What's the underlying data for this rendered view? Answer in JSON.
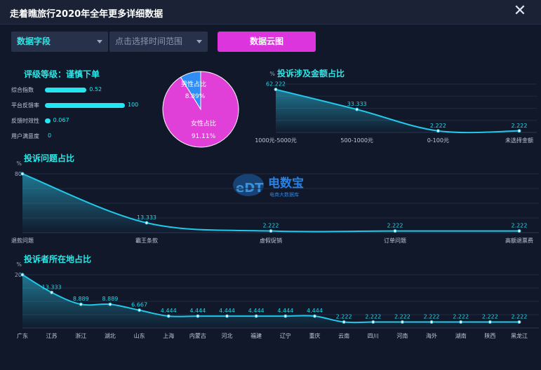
{
  "window": {
    "title": "走着瞧旅行2020年全年更多详细数据"
  },
  "filters": {
    "field_select": "数据字段",
    "time_placeholder": "点击选择时间范围",
    "cloud_button": "数据云图"
  },
  "rating": {
    "title": "评级等级：谨慎下单",
    "items": [
      {
        "label": "综合指数",
        "value": "0.52",
        "fraction": 0.52
      },
      {
        "label": "平台反馈率",
        "value": "100",
        "fraction": 1.0
      },
      {
        "label": "反馈时效性",
        "value": "0.067",
        "fraction": 0.067
      },
      {
        "label": "用户满意度",
        "value": "0",
        "fraction": 0
      }
    ]
  },
  "colors": {
    "accent": "#2ee6e6",
    "pink": "#e040d8",
    "blue": "#2f8df5",
    "button": "#dd35de"
  },
  "chart_data": [
    {
      "type": "pie",
      "labels": [
        "男性占比",
        "女性占比"
      ],
      "values": [
        8.89,
        91.11
      ],
      "value_labels": [
        "8.89%",
        "91.11%"
      ],
      "colors": [
        "#2f8df5",
        "#e040d8"
      ]
    },
    {
      "type": "area",
      "title": "投诉涉及金额占比",
      "ylabel": "%",
      "categories": [
        "1000元-5000元",
        "500-1000元",
        "0-100元",
        "未选择金额"
      ],
      "values": [
        62.222,
        33.333,
        2.222,
        2.222
      ],
      "labels": [
        "62.222",
        "33.333",
        "2.222",
        "2.222"
      ],
      "ylim": [
        0,
        70
      ]
    },
    {
      "type": "area",
      "title": "投诉问题占比",
      "ylabel": "%",
      "yticks": [
        "80"
      ],
      "categories": [
        "退款问题",
        "霸王条款",
        "虚假促销",
        "订单问题",
        "高额退票费"
      ],
      "values": [
        80,
        13.333,
        2.222,
        2.222,
        2.222
      ],
      "labels": [
        "",
        "13.333",
        "2.222",
        "2.222",
        "2.222"
      ],
      "ylim": [
        0,
        80
      ]
    },
    {
      "type": "area",
      "title": "投诉者所在地占比",
      "ylabel": "%",
      "yticks": [
        "20"
      ],
      "categories": [
        "广东",
        "江苏",
        "浙江",
        "湖北",
        "山东",
        "上海",
        "内蒙古",
        "河北",
        "福建",
        "辽宁",
        "重庆",
        "云南",
        "四川",
        "河南",
        "海外",
        "湖南",
        "陕西",
        "黑龙江"
      ],
      "values": [
        20,
        13.333,
        8.889,
        8.889,
        6.667,
        4.444,
        4.444,
        4.444,
        4.444,
        4.444,
        4.444,
        2.222,
        2.222,
        2.222,
        2.222,
        2.222,
        2.222,
        2.222
      ],
      "labels": [
        "",
        "13.333",
        "8.889",
        "8.889",
        "6.667",
        "4.444",
        "4.444",
        "4.444",
        "4.444",
        "4.444",
        "4.444",
        "2.222",
        "2.222",
        "2.222",
        "2.222",
        "2.222",
        "2.222",
        "2.222"
      ],
      "ylim": [
        0,
        20
      ]
    }
  ],
  "watermark": {
    "logo": "eDT",
    "name": "电数宝",
    "tagline": "电商大数据库"
  }
}
